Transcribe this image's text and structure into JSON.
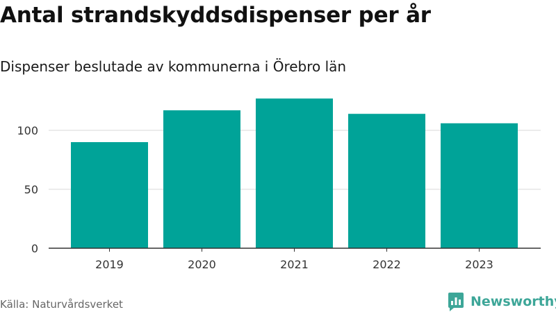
{
  "title": "Antal strandskyddsdispenser per år",
  "subtitle": "Dispenser beslutade av kommunerna i Örebro län",
  "source": "Källa: Naturvårdsverket",
  "brand": "Newsworthy",
  "colors": {
    "bar": "#00a398",
    "grid": "#d9d9d9",
    "axis": "#333333",
    "brand": "#3da698"
  },
  "chart_data": {
    "type": "bar",
    "categories": [
      "2019",
      "2020",
      "2021",
      "2022",
      "2023"
    ],
    "values": [
      90,
      117,
      127,
      114,
      106
    ],
    "title": "Antal strandskyddsdispenser per år",
    "subtitle": "Dispenser beslutade av kommunerna i Örebro län",
    "xlabel": "",
    "ylabel": "",
    "ylim": [
      0,
      130
    ],
    "yticks": [
      0,
      50,
      100
    ],
    "grid": true
  }
}
